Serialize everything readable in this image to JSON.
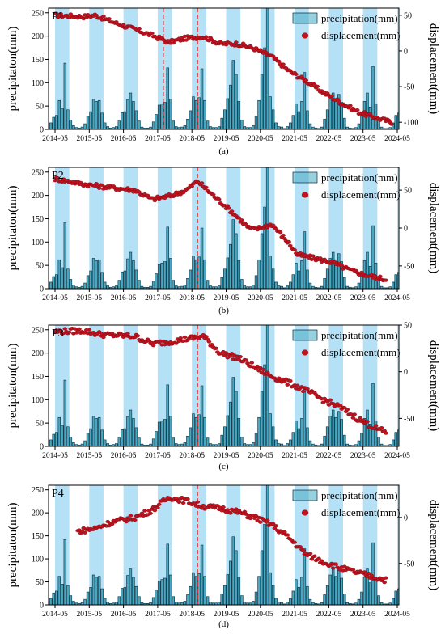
{
  "figure": {
    "panels": [
      {
        "id": "P1",
        "caption": "(a)"
      },
      {
        "id": "P2",
        "caption": "(b)"
      },
      {
        "id": "P3",
        "caption": "(c)"
      },
      {
        "id": "P4",
        "caption": "(d)"
      }
    ],
    "colors": {
      "wet_season_band": "#a8dcf6",
      "bar_fill": "#46a9c3",
      "bar_edge": "#0a2a3a",
      "point": "#c1121f",
      "marker_line": "#e53935",
      "axis": "#000000"
    }
  },
  "chart_data": [
    {
      "type": "bar",
      "title": "P1",
      "caption": "(a)",
      "xlabel": "",
      "ylabel": "precipitaton(mm)",
      "y2label": "displacement(mm)",
      "x_ticks": [
        "2014-05",
        "2015-05",
        "2016-05",
        "2017-05",
        "2018-05",
        "2019-05",
        "2020-05",
        "2021-05",
        "2022-05",
        "2023-05",
        "2024-05"
      ],
      "ylim": [
        0,
        260
      ],
      "y_ticks": [
        0,
        50,
        100,
        150,
        200,
        250
      ],
      "y2lim": [
        -110,
        60
      ],
      "y2_ticks": [
        -100,
        -50,
        0,
        50
      ],
      "y2_tick_labels": [
        "-100",
        "-50",
        "0",
        "50"
      ],
      "legend": {
        "position": "top-right",
        "entries": [
          "precipitation(mm)",
          "displacement(mm)"
        ]
      },
      "highlight_season_months": [
        5,
        6,
        7,
        8,
        9
      ],
      "marker_dates": [
        "2017-07",
        "2018-07"
      ],
      "series": [
        {
          "name": "precipitation(mm)",
          "type": "bar",
          "unit": "mm",
          "start": "2014-01",
          "values": [
            5,
            8,
            14,
            26,
            30,
            62,
            45,
            142,
            42,
            20,
            8,
            4,
            3,
            5,
            12,
            28,
            38,
            65,
            60,
            62,
            35,
            14,
            6,
            3,
            4,
            6,
            18,
            36,
            38,
            64,
            78,
            60,
            40,
            18,
            5,
            3,
            3,
            5,
            16,
            32,
            52,
            55,
            58,
            132,
            65,
            18,
            6,
            4,
            5,
            8,
            22,
            40,
            70,
            62,
            68,
            130,
            62,
            18,
            6,
            4,
            4,
            6,
            24,
            42,
            66,
            95,
            148,
            118,
            60,
            20,
            6,
            4,
            4,
            8,
            28,
            62,
            118,
            175,
            262,
            70,
            42,
            14,
            6,
            5,
            2,
            6,
            14,
            30,
            55,
            38,
            60,
            122,
            40,
            12,
            5,
            3,
            2,
            5,
            22,
            42,
            65,
            78,
            62,
            75,
            58,
            24,
            5,
            3,
            2,
            4,
            12,
            28,
            60,
            78,
            48,
            135,
            55,
            20,
            5,
            2,
            2,
            4,
            14,
            30,
            35
          ]
        },
        {
          "name": "displacement(mm)",
          "type": "scatter",
          "unit": "mm",
          "start": "2014-05",
          "anchors": [
            [
              "2014-05",
              50
            ],
            [
              "2015-03",
              48
            ],
            [
              "2015-07",
              50
            ],
            [
              "2016-03",
              38
            ],
            [
              "2016-09",
              30
            ],
            [
              "2017-03",
              22
            ],
            [
              "2017-09",
              12
            ],
            [
              "2018-03",
              18
            ],
            [
              "2018-09",
              20
            ],
            [
              "2019-03",
              10
            ],
            [
              "2019-09",
              10
            ],
            [
              "2020-03",
              3
            ],
            [
              "2020-09",
              -8
            ],
            [
              "2021-03",
              -28
            ],
            [
              "2021-09",
              -42
            ],
            [
              "2022-03",
              -58
            ],
            [
              "2022-09",
              -72
            ],
            [
              "2023-03",
              -85
            ],
            [
              "2023-09",
              -93
            ],
            [
              "2024-03",
              -100
            ]
          ]
        }
      ]
    },
    {
      "type": "bar",
      "title": "P2",
      "caption": "(b)",
      "xlabel": "",
      "ylabel": "precipitaton(mm)",
      "y2label": "displacement(mm)",
      "x_ticks": [
        "2014-05",
        "2015-05",
        "2016-05",
        "2017-05",
        "2018-05",
        "2019-05",
        "2020-05",
        "2021-05",
        "2022-05",
        "2023-05",
        "2024-05"
      ],
      "ylim": [
        0,
        260
      ],
      "y_ticks": [
        0,
        50,
        100,
        150,
        200,
        250
      ],
      "y2lim": [
        -80,
        80
      ],
      "y2_ticks": [
        -50,
        0,
        50
      ],
      "y2_tick_labels": [
        "-50",
        "0",
        "50"
      ],
      "legend": {
        "position": "top-right",
        "entries": [
          "precipitation(mm)",
          "displacement(mm)"
        ]
      },
      "highlight_season_months": [
        5,
        6,
        7,
        8,
        9
      ],
      "marker_dates": [
        "2018-07"
      ],
      "series": [
        {
          "name": "precipitation(mm)",
          "type": "bar",
          "unit": "mm",
          "start": "2014-01",
          "values": [
            5,
            8,
            14,
            26,
            30,
            62,
            45,
            142,
            42,
            20,
            8,
            4,
            3,
            5,
            12,
            28,
            38,
            65,
            60,
            62,
            35,
            14,
            6,
            3,
            4,
            6,
            18,
            36,
            38,
            64,
            78,
            60,
            40,
            18,
            5,
            3,
            3,
            5,
            16,
            32,
            52,
            55,
            58,
            132,
            65,
            18,
            6,
            4,
            5,
            8,
            22,
            40,
            70,
            62,
            68,
            130,
            62,
            18,
            6,
            4,
            4,
            6,
            24,
            42,
            66,
            95,
            148,
            118,
            60,
            20,
            6,
            4,
            4,
            8,
            28,
            62,
            118,
            175,
            262,
            70,
            42,
            14,
            6,
            5,
            2,
            6,
            14,
            30,
            55,
            38,
            60,
            122,
            40,
            12,
            5,
            3,
            2,
            5,
            22,
            42,
            65,
            78,
            62,
            75,
            58,
            24,
            5,
            3,
            2,
            4,
            12,
            28,
            60,
            78,
            48,
            135,
            55,
            20,
            5,
            2,
            2,
            4,
            14,
            30,
            35
          ]
        },
        {
          "name": "displacement(mm)",
          "type": "scatter",
          "unit": "mm",
          "start": "2014-05",
          "anchors": [
            [
              "2014-05",
              65
            ],
            [
              "2015-03",
              58
            ],
            [
              "2015-09",
              55
            ],
            [
              "2016-09",
              50
            ],
            [
              "2017-03",
              38
            ],
            [
              "2017-09",
              42
            ],
            [
              "2018-03",
              50
            ],
            [
              "2018-07",
              62
            ],
            [
              "2018-11",
              48
            ],
            [
              "2019-06",
              25
            ],
            [
              "2020-01",
              0
            ],
            [
              "2020-03",
              -2
            ],
            [
              "2020-09",
              5
            ],
            [
              "2021-03",
              -20
            ],
            [
              "2021-06",
              -35
            ],
            [
              "2021-12",
              -40
            ],
            [
              "2022-06",
              -45
            ],
            [
              "2022-12",
              -55
            ],
            [
              "2023-06",
              -62
            ],
            [
              "2024-01",
              -68
            ]
          ]
        }
      ]
    },
    {
      "type": "bar",
      "title": "P3",
      "caption": "(c)",
      "xlabel": "",
      "ylabel": "precipitaton(mm)",
      "y2label": "displacement(mm)",
      "x_ticks": [
        "2014-05",
        "2015-05",
        "2016-05",
        "2017-05",
        "2018-05",
        "2019-05",
        "2020-05",
        "2021-05",
        "2022-05",
        "2023-05",
        "2024-05"
      ],
      "ylim": [
        0,
        260
      ],
      "y_ticks": [
        0,
        50,
        100,
        150,
        200,
        250
      ],
      "y2lim": [
        -80,
        50
      ],
      "y2_ticks": [
        -50,
        0,
        50
      ],
      "y2_tick_labels": [
        "-50",
        "0",
        "50"
      ],
      "legend": {
        "position": "top-right",
        "entries": [
          "precipitation(mm)",
          "displacement(mm)"
        ]
      },
      "highlight_season_months": [
        5,
        6,
        7,
        8,
        9
      ],
      "marker_dates": [
        "2018-07"
      ],
      "series": [
        {
          "name": "precipitation(mm)",
          "type": "bar",
          "unit": "mm",
          "start": "2014-01",
          "values": [
            5,
            8,
            14,
            26,
            30,
            62,
            45,
            142,
            42,
            20,
            8,
            4,
            3,
            5,
            12,
            28,
            38,
            65,
            60,
            62,
            35,
            14,
            6,
            3,
            4,
            6,
            18,
            36,
            38,
            64,
            78,
            60,
            40,
            18,
            5,
            3,
            3,
            5,
            16,
            32,
            52,
            55,
            58,
            132,
            65,
            18,
            6,
            4,
            5,
            8,
            22,
            40,
            70,
            62,
            68,
            130,
            62,
            18,
            6,
            4,
            4,
            6,
            24,
            42,
            66,
            95,
            148,
            118,
            60,
            20,
            6,
            4,
            4,
            8,
            28,
            62,
            118,
            175,
            262,
            70,
            42,
            14,
            6,
            5,
            2,
            6,
            14,
            30,
            55,
            38,
            60,
            122,
            40,
            12,
            5,
            3,
            2,
            5,
            22,
            42,
            65,
            78,
            62,
            75,
            58,
            24,
            5,
            3,
            2,
            4,
            12,
            28,
            60,
            78,
            48,
            135,
            55,
            20,
            5,
            2,
            2,
            4,
            14,
            30,
            35
          ]
        },
        {
          "name": "displacement(mm)",
          "type": "scatter",
          "unit": "mm",
          "start": "2014-05",
          "anchors": [
            [
              "2014-05",
              43
            ],
            [
              "2015-03",
              44
            ],
            [
              "2015-09",
              40
            ],
            [
              "2016-09",
              38
            ],
            [
              "2017-03",
              30
            ],
            [
              "2017-09",
              32
            ],
            [
              "2018-03",
              35
            ],
            [
              "2018-09",
              38
            ],
            [
              "2019-03",
              20
            ],
            [
              "2019-09",
              15
            ],
            [
              "2020-03",
              5
            ],
            [
              "2020-09",
              -5
            ],
            [
              "2021-03",
              -12
            ],
            [
              "2021-09",
              -20
            ],
            [
              "2022-03",
              -30
            ],
            [
              "2022-09",
              -38
            ],
            [
              "2023-03",
              -50
            ],
            [
              "2023-09",
              -60
            ],
            [
              "2024-01",
              -65
            ]
          ]
        }
      ]
    },
    {
      "type": "bar",
      "title": "P4",
      "caption": "(d)",
      "xlabel": "",
      "ylabel": "precipitaton(mm)",
      "y2label": "displacement(mm)",
      "x_ticks": [
        "2014-05",
        "2015-05",
        "2016-05",
        "2017-05",
        "2018-05",
        "2019-05",
        "2020-05",
        "2021-05",
        "2022-05",
        "2023-05",
        "2024-05"
      ],
      "ylim": [
        0,
        260
      ],
      "y_ticks": [
        0,
        50,
        100,
        150,
        200,
        250
      ],
      "y2lim": [
        -95,
        35
      ],
      "y2_ticks": [
        -50,
        0
      ],
      "y2_tick_labels": [
        "-50",
        "0"
      ],
      "legend": {
        "position": "top-right",
        "entries": [
          "precipitation(mm)",
          "displacement(mm)"
        ]
      },
      "highlight_season_months": [
        5,
        6,
        7,
        8,
        9
      ],
      "marker_dates": [
        "2018-07"
      ],
      "series": [
        {
          "name": "precipitation(mm)",
          "type": "bar",
          "unit": "mm",
          "start": "2014-01",
          "values": [
            5,
            8,
            14,
            26,
            30,
            62,
            45,
            142,
            42,
            20,
            8,
            4,
            3,
            5,
            12,
            28,
            38,
            65,
            60,
            62,
            35,
            14,
            6,
            3,
            4,
            6,
            18,
            36,
            38,
            64,
            78,
            60,
            40,
            18,
            5,
            3,
            3,
            5,
            16,
            32,
            52,
            55,
            58,
            132,
            65,
            18,
            6,
            4,
            5,
            8,
            22,
            40,
            70,
            62,
            68,
            130,
            62,
            18,
            6,
            4,
            4,
            6,
            24,
            42,
            66,
            95,
            148,
            118,
            60,
            20,
            6,
            4,
            4,
            8,
            28,
            62,
            118,
            175,
            262,
            70,
            42,
            14,
            6,
            5,
            2,
            6,
            14,
            30,
            55,
            38,
            60,
            122,
            40,
            12,
            5,
            3,
            2,
            5,
            22,
            42,
            65,
            78,
            62,
            75,
            58,
            24,
            5,
            3,
            2,
            4,
            12,
            28,
            60,
            78,
            48,
            135,
            55,
            20,
            5,
            2,
            2,
            4,
            14,
            30,
            35
          ]
        },
        {
          "name": "displacement(mm)",
          "type": "scatter",
          "unit": "mm",
          "start": "2015-01",
          "anchors": [
            [
              "2015-01",
              -15
            ],
            [
              "2015-07",
              -12
            ],
            [
              "2016-01",
              -5
            ],
            [
              "2016-09",
              0
            ],
            [
              "2017-03",
              8
            ],
            [
              "2017-09",
              22
            ],
            [
              "2018-03",
              18
            ],
            [
              "2018-09",
              12
            ],
            [
              "2019-03",
              10
            ],
            [
              "2019-09",
              6
            ],
            [
              "2020-03",
              0
            ],
            [
              "2020-09",
              -8
            ],
            [
              "2021-03",
              -22
            ],
            [
              "2021-09",
              -40
            ],
            [
              "2022-03",
              -48
            ],
            [
              "2022-09",
              -55
            ],
            [
              "2023-03",
              -60
            ],
            [
              "2023-09",
              -65
            ],
            [
              "2024-01",
              -68
            ]
          ]
        }
      ]
    }
  ]
}
